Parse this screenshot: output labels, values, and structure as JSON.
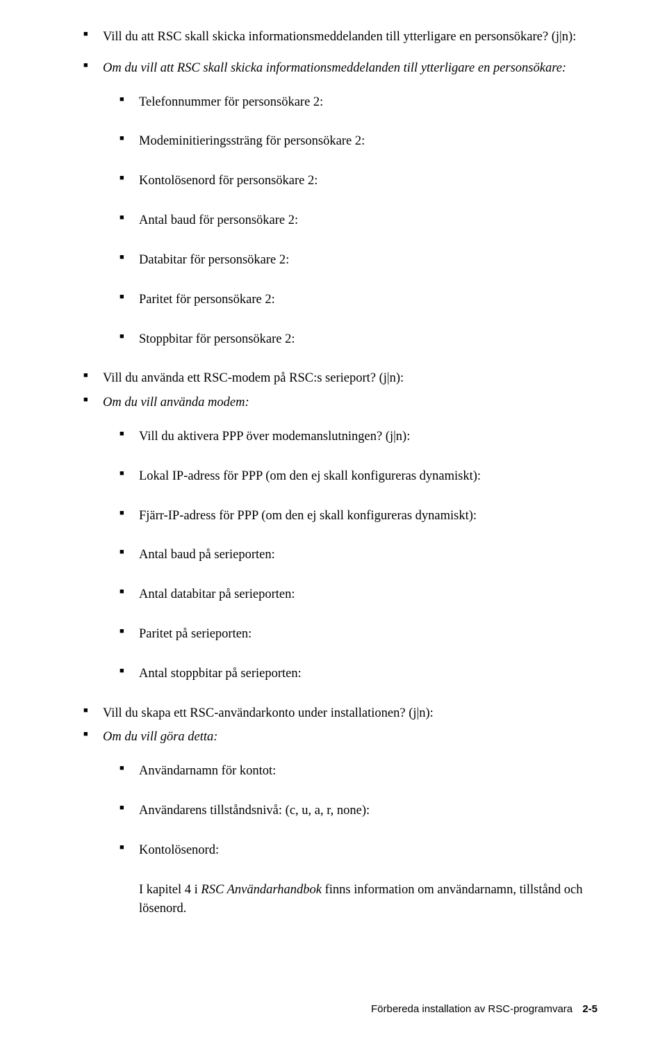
{
  "items": [
    {
      "text": "Vill du att RSC skall skicka informationsmeddelanden till ytterligare en personsökare? (j|n):",
      "sub": []
    },
    {
      "text": "Om du vill att RSC skall skicka informationsmeddelanden till ytterligare en personsökare:",
      "italic": true,
      "sub": [
        {
          "text": "Telefonnummer för personsökare 2:"
        },
        {
          "text": "Modeminitieringssträng för personsökare 2:"
        },
        {
          "text": "Kontolösenord för personsökare 2:"
        },
        {
          "text": "Antal baud för personsökare 2:"
        },
        {
          "text": "Databitar för personsökare 2:"
        },
        {
          "text": "Paritet för personsökare 2:"
        },
        {
          "text": "Stoppbitar för personsökare 2:"
        }
      ]
    },
    {
      "text": "Vill du använda ett RSC-modem på RSC:s serieport? (j|n):",
      "tight": true,
      "sub": []
    },
    {
      "text": "Om du vill använda modem:",
      "italic": true,
      "sub": [
        {
          "text": "Vill du aktivera PPP över modemanslutningen? (j|n):"
        },
        {
          "text": "Lokal IP-adress för PPP (om den ej skall konfigureras dynamiskt):"
        },
        {
          "text": "Fjärr-IP-adress för PPP (om den ej skall konfigureras dynamiskt):"
        },
        {
          "text": "Antal baud på serieporten:"
        },
        {
          "text": "Antal databitar på serieporten:"
        },
        {
          "text": "Paritet på serieporten:"
        },
        {
          "text": "Antal stoppbitar på serieporten:"
        }
      ]
    },
    {
      "text": "Vill du skapa ett RSC-användarkonto under installationen? (j|n):",
      "tight": true,
      "sub": []
    },
    {
      "text": "Om du vill göra detta:",
      "italic": true,
      "sub": [
        {
          "text": "Användarnamn för kontot:"
        },
        {
          "text": "Användarens tillståndsnivå: (c, u, a, r, none):"
        },
        {
          "text": "Kontolösenord:"
        }
      ],
      "tail": "I kapitel 4 i RSC  Användarhandbok finns information om användarnamn, tillstånd och lösenord.",
      "tail_italic_part": "RSC  Användarhandbok",
      "tail_prefix": "I kapitel 4 i ",
      "tail_suffix": " finns information om användarnamn, tillstånd och lösenord."
    }
  ],
  "footer": {
    "text": "Förbereda installation av RSC-programvara",
    "page": "2-5"
  }
}
